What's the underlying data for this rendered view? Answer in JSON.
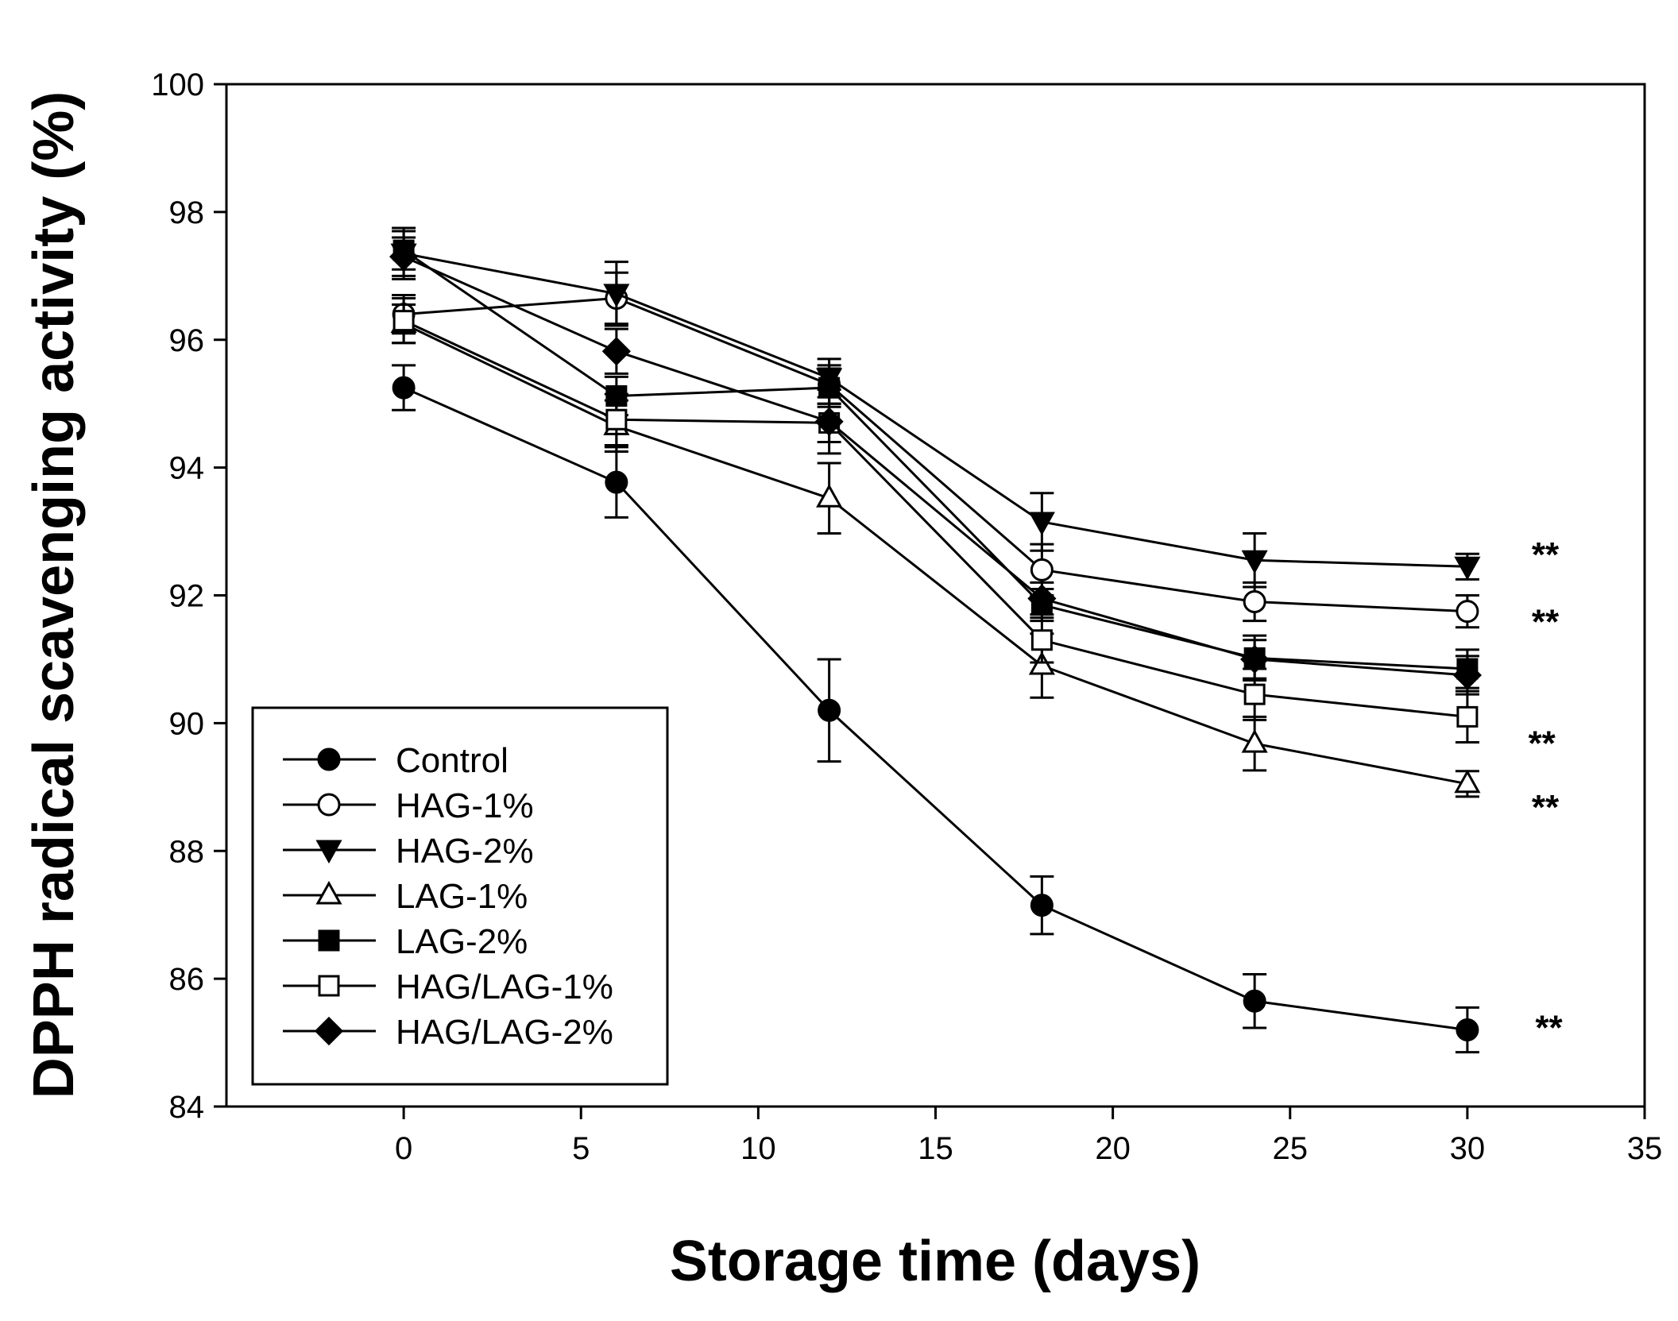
{
  "chart_data": {
    "type": "line",
    "title": "",
    "xlabel": "Storage time (days)",
    "ylabel": "DPPH radical scavenging activity (%)",
    "xlim": [
      -5,
      35
    ],
    "ylim": [
      84,
      100
    ],
    "xticks": [
      0,
      5,
      10,
      15,
      20,
      25,
      30,
      35
    ],
    "yticks": [
      84,
      86,
      88,
      90,
      92,
      94,
      96,
      98,
      100
    ],
    "grid": false,
    "legend_position": "bottom-left",
    "x": [
      0,
      6,
      12,
      18,
      24,
      30
    ],
    "series": [
      {
        "name": "Control",
        "marker": "circle",
        "filled": true,
        "values": [
          95.25,
          93.77,
          90.2,
          87.15,
          85.65,
          85.2
        ],
        "errors": [
          0.35,
          0.55,
          0.8,
          0.45,
          0.42,
          0.35
        ]
      },
      {
        "name": "HAG-1%",
        "marker": "circle",
        "filled": false,
        "values": [
          96.4,
          96.65,
          95.3,
          92.4,
          91.9,
          91.75
        ],
        "errors": [
          0.3,
          0.4,
          0.3,
          0.4,
          0.3,
          0.25
        ]
      },
      {
        "name": "HAG-2%",
        "marker": "triangle-down",
        "filled": true,
        "values": [
          97.35,
          96.72,
          95.4,
          93.15,
          92.55,
          92.45
        ],
        "errors": [
          0.4,
          0.5,
          0.3,
          0.45,
          0.42,
          0.2
        ]
      },
      {
        "name": "LAG-1%",
        "marker": "triangle-up",
        "filled": false,
        "values": [
          96.25,
          94.65,
          93.52,
          90.9,
          89.68,
          89.05
        ],
        "errors": [
          0.3,
          0.4,
          0.55,
          0.5,
          0.42,
          0.2
        ]
      },
      {
        "name": "LAG-2%",
        "marker": "square",
        "filled": true,
        "values": [
          97.4,
          95.12,
          95.25,
          91.85,
          91.02,
          90.85
        ],
        "errors": [
          0.3,
          0.3,
          0.3,
          0.25,
          0.35,
          0.3
        ]
      },
      {
        "name": "HAG/LAG-1%",
        "marker": "square",
        "filled": false,
        "values": [
          96.3,
          94.75,
          94.7,
          91.3,
          90.45,
          90.1
        ],
        "errors": [
          0.35,
          0.4,
          0.3,
          0.35,
          0.4,
          0.4
        ]
      },
      {
        "name": "HAG/LAG-2%",
        "marker": "diamond",
        "filled": true,
        "values": [
          97.3,
          95.82,
          94.72,
          91.95,
          91.0,
          90.75
        ],
        "errors": [
          0.3,
          0.35,
          0.5,
          0.25,
          0.3,
          0.3
        ]
      }
    ],
    "annotations": [
      {
        "text": "**",
        "x": 32.2,
        "y": 92.65
      },
      {
        "text": "**",
        "x": 32.2,
        "y": 91.6
      },
      {
        "text": "**",
        "x": 32.1,
        "y": 89.7
      },
      {
        "text": "**",
        "x": 32.2,
        "y": 88.7
      },
      {
        "text": "**",
        "x": 32.3,
        "y": 85.25
      }
    ]
  }
}
